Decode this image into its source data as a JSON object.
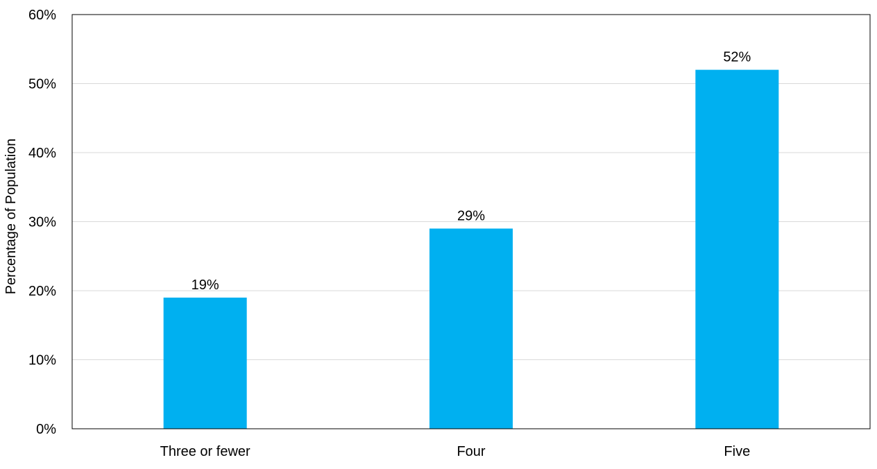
{
  "chart_data": {
    "type": "bar",
    "title": "",
    "xlabel": "",
    "ylabel": "Percentage of Population",
    "categories": [
      "Three or fewer",
      "Four",
      "Five"
    ],
    "values": [
      19,
      29,
      52
    ],
    "value_labels": [
      "19%",
      "29%",
      "52%"
    ],
    "ylim": [
      0,
      60
    ],
    "yticks": [
      0,
      10,
      20,
      30,
      40,
      50,
      60
    ],
    "ytick_labels": [
      "0%",
      "10%",
      "20%",
      "30%",
      "40%",
      "50%",
      "60%"
    ],
    "grid": "horizontal",
    "legend": "none",
    "colors": {
      "bar": "#00B0F0",
      "grid": "#D9D9D9",
      "frame": "#000000"
    }
  }
}
